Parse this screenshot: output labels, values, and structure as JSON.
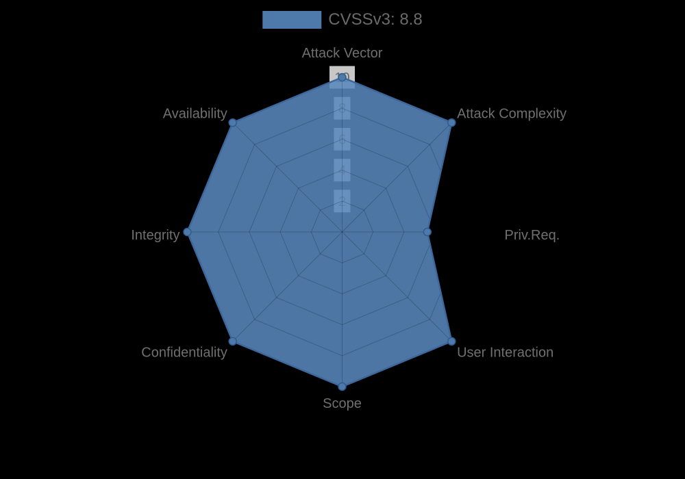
{
  "legend": {
    "label": "CVSSv3: 8.8",
    "swatch_color": "#4d79ab"
  },
  "chart_data": {
    "type": "radar",
    "title": "CVSSv3: 8.8",
    "categories": [
      "Attack Vector",
      "Attack Complexity",
      "Priv.Req.",
      "User Interaction",
      "Scope",
      "Confidentiality",
      "Integrity",
      "Availability"
    ],
    "series": [
      {
        "name": "CVSSv3: 8.8",
        "values": [
          10,
          10,
          5.5,
          10,
          10,
          10,
          10,
          10
        ]
      }
    ],
    "ticks": [
      2,
      4,
      6,
      8,
      10
    ],
    "range": [
      0,
      10
    ],
    "grid": true,
    "legend_position": "top",
    "colors": {
      "background": "#000000",
      "fill": "rgba(88,136,190,0.87)",
      "border": "#3e689b",
      "marker_fill": "#4d79ab",
      "marker_border": "#2f5c8e",
      "grid_line": "rgba(0,0,0,0.2)",
      "tick_backdrop": "rgba(255,255,255,0.78)",
      "tick_text": "#666666",
      "axis_label": "#707070"
    }
  }
}
